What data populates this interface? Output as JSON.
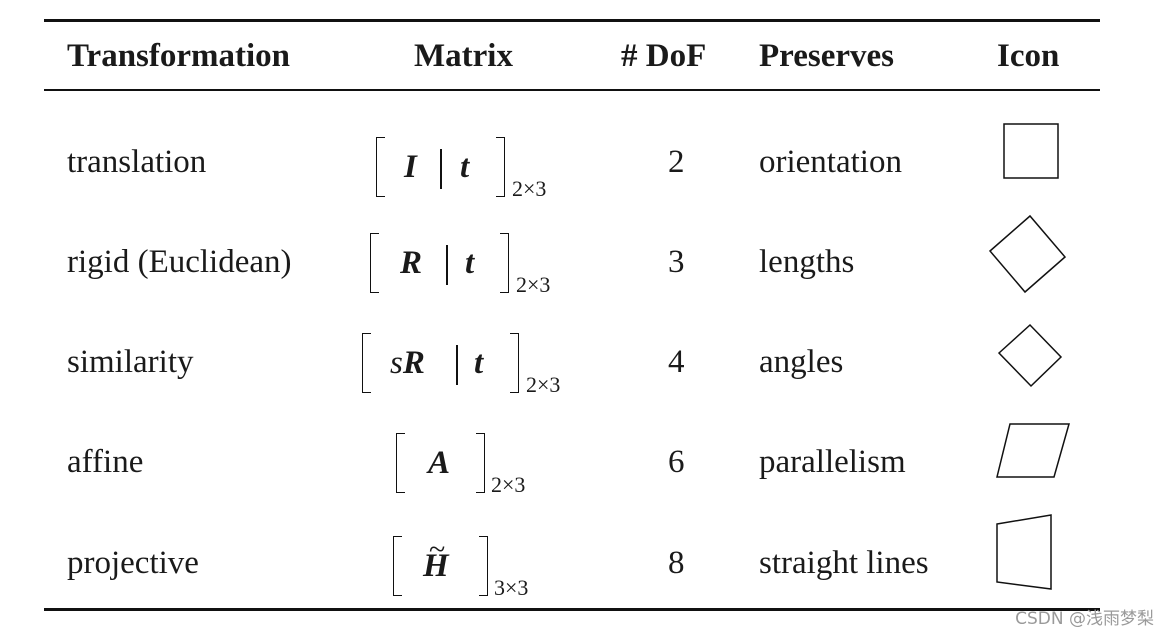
{
  "headers": {
    "transformation": "Transformation",
    "matrix": "Matrix",
    "dof": "# DoF",
    "preserves": "Preserves",
    "icon": "Icon"
  },
  "rows": [
    {
      "name": "translation",
      "matrix_left": "I",
      "matrix_right": "t",
      "size": "2×3",
      "dof": "2",
      "preserves": "orientation",
      "icon": "square-icon"
    },
    {
      "name": "rigid (Euclidean)",
      "matrix_left": "R",
      "matrix_right": "t",
      "size": "2×3",
      "dof": "3",
      "preserves": "lengths",
      "icon": "rotated-square-icon"
    },
    {
      "name": "similarity",
      "matrix_scalar": "s",
      "matrix_left": "R",
      "matrix_right": "t",
      "size": "2×3",
      "dof": "4",
      "preserves": "angles",
      "icon": "small-rotated-square-icon"
    },
    {
      "name": "affine",
      "matrix_left": "A",
      "size": "2×3",
      "dof": "6",
      "preserves": "parallelism",
      "icon": "parallelogram-icon"
    },
    {
      "name": "projective",
      "matrix_left": "H",
      "size": "3×3",
      "dof": "8",
      "preserves": "straight lines",
      "icon": "trapezoid-icon"
    }
  ],
  "watermark": "CSDN @浅雨梦梨"
}
